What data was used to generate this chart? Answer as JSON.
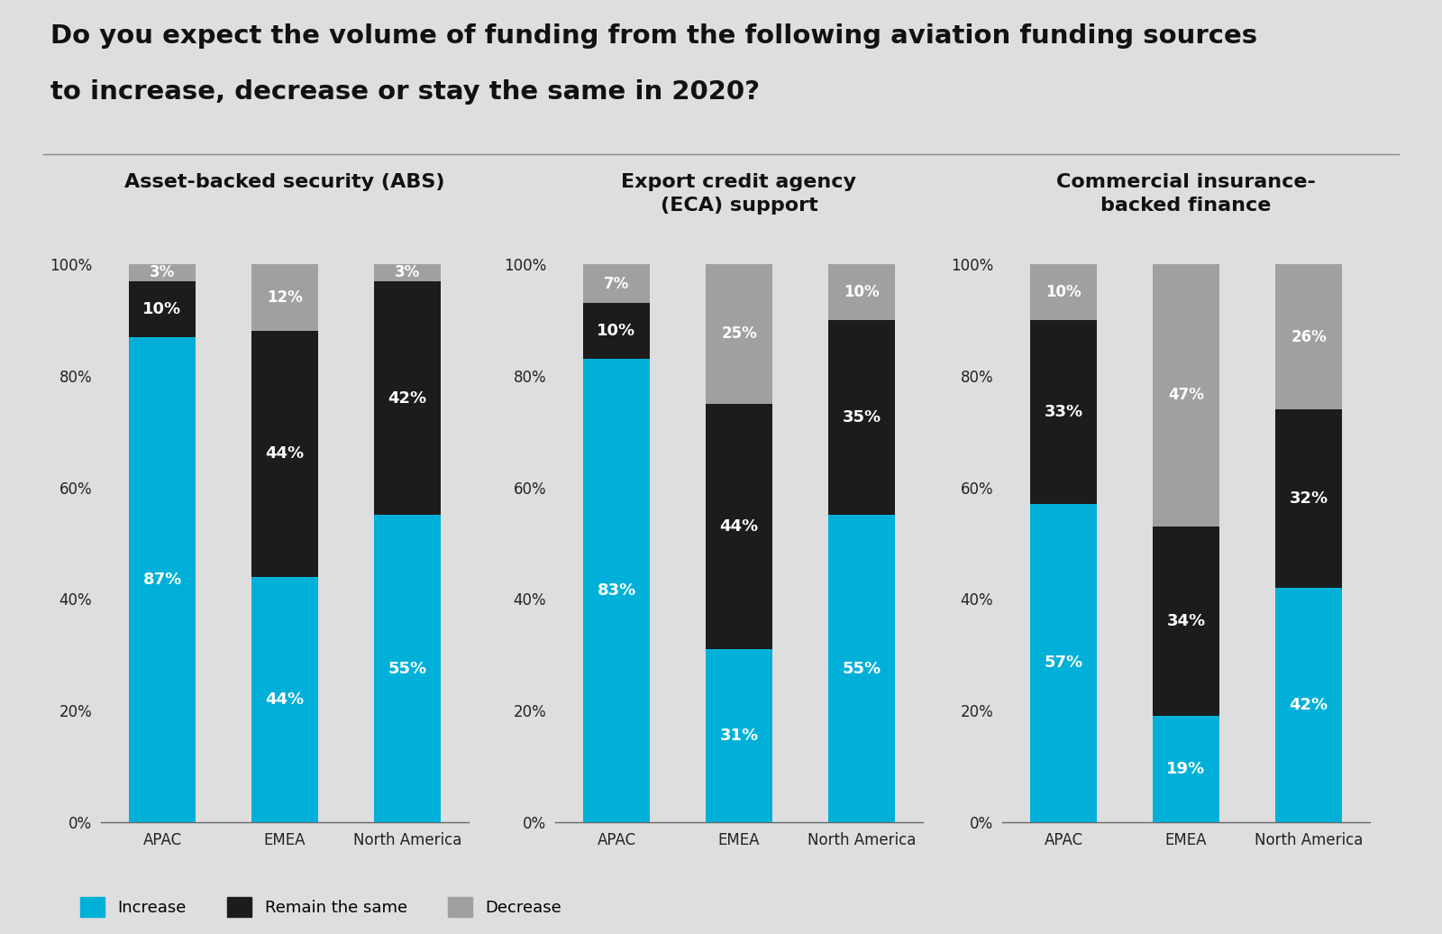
{
  "title_line1": "Do you expect the volume of funding from the following aviation funding sources",
  "title_line2": "to increase, decrease or stay the same in 2020?",
  "background_color": "#dedede",
  "charts": [
    {
      "title": "Asset-backed security (ABS)",
      "title_multiline": false,
      "categories": [
        "APAC",
        "EMEA",
        "North America"
      ],
      "increase": [
        87,
        44,
        55
      ],
      "remain": [
        10,
        44,
        42
      ],
      "decrease": [
        3,
        12,
        3
      ]
    },
    {
      "title": "Export credit agency\n(ECA) support",
      "title_multiline": true,
      "categories": [
        "APAC",
        "EMEA",
        "North America"
      ],
      "increase": [
        83,
        31,
        55
      ],
      "remain": [
        10,
        44,
        35
      ],
      "decrease": [
        7,
        25,
        10
      ]
    },
    {
      "title": "Commercial insurance-\nbacked finance",
      "title_multiline": true,
      "categories": [
        "APAC",
        "EMEA",
        "North America"
      ],
      "increase": [
        57,
        19,
        42
      ],
      "remain": [
        33,
        34,
        32
      ],
      "decrease": [
        10,
        47,
        26
      ]
    }
  ],
  "colors": {
    "increase": "#00b0d8",
    "remain": "#1c1c1c",
    "decrease": "#a0a0a0"
  },
  "legend": [
    "Increase",
    "Remain the same",
    "Decrease"
  ],
  "bar_width": 0.55,
  "yticks": [
    0,
    20,
    40,
    60,
    80,
    100
  ],
  "ytick_labels": [
    "0%",
    "20%",
    "40%",
    "60%",
    "80%",
    "100%"
  ]
}
